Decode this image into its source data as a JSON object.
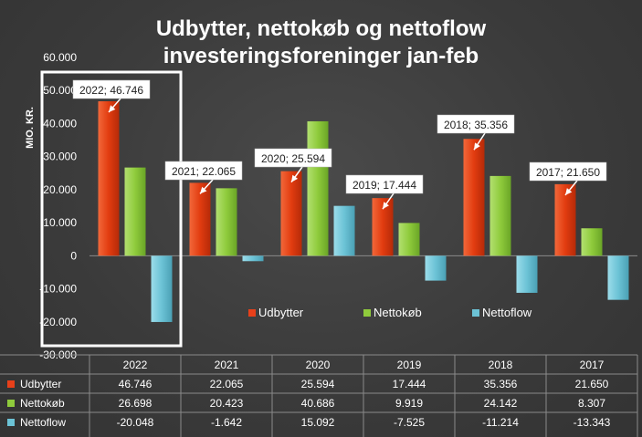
{
  "chart_data": {
    "type": "bar",
    "title": [
      "Udbytter, nettokøb og nettoflow",
      "investeringsforeninger jan-feb"
    ],
    "ylabel": "MIO. KR.",
    "ylim": [
      -30000,
      60000
    ],
    "yticks": [
      60000,
      50000,
      40000,
      30000,
      20000,
      10000,
      0,
      -10000,
      -20000,
      -30000
    ],
    "ytick_labels": [
      "60.000",
      "50.000",
      "40.000",
      "30.000",
      "20.000",
      "10.000",
      "0",
      "-10.000",
      "-20.000",
      "-30.000"
    ],
    "categories": [
      "2022",
      "2021",
      "2020",
      "2019",
      "2018",
      "2017"
    ],
    "series": [
      {
        "name": "Udbytter",
        "color": "#e8401a",
        "values": [
          46746,
          22065,
          25594,
          17444,
          35356,
          21650
        ],
        "table_values": [
          "46.746",
          "22.065",
          "25.594",
          "17.444",
          "35.356",
          "21.650"
        ]
      },
      {
        "name": "Nettokøb",
        "color": "#8fcb3c",
        "values": [
          26698,
          20423,
          40686,
          9919,
          24142,
          8307
        ],
        "table_values": [
          "26.698",
          "20.423",
          "40.686",
          "9.919",
          "24.142",
          "8.307"
        ]
      },
      {
        "name": "Nettoflow",
        "color": "#6cc3d6",
        "values": [
          -20048,
          -1642,
          15092,
          -7525,
          -11214,
          -13343
        ],
        "table_values": [
          "-20.048",
          "-1.642",
          "15.092",
          "-7.525",
          "-11.214",
          "-13.343"
        ]
      }
    ],
    "callouts": [
      "2022; 46.746",
      "2021; 22.065",
      "2020; 25.594",
      "2019; 17.444",
      "2018; 35.356",
      "2017; 21.650"
    ],
    "legend_position": "inside-bottom",
    "grid": false,
    "highlight_category": "2022"
  }
}
